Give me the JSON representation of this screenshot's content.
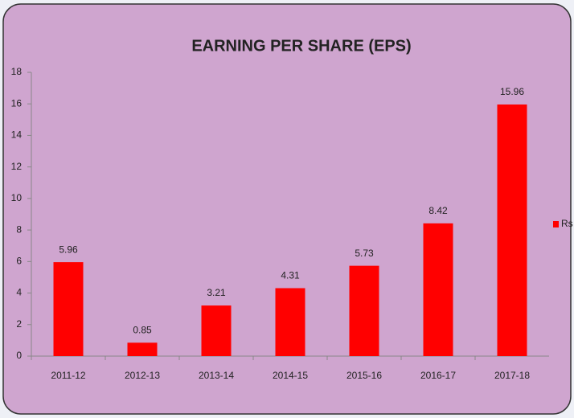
{
  "chart_data": {
    "type": "bar",
    "title": "EARNING PER SHARE (EPS)",
    "categories": [
      "2011-12",
      "2012-13",
      "2013-14",
      "2014-15",
      "2015-16",
      "2016-17",
      "2017-18"
    ],
    "series": [
      {
        "name": "Rs",
        "color": "#ff0000",
        "values": [
          5.96,
          0.85,
          3.21,
          4.31,
          5.73,
          8.42,
          15.96
        ]
      }
    ],
    "ylim": [
      0,
      18
    ],
    "yticks": [
      0,
      2,
      4,
      6,
      8,
      10,
      12,
      14,
      16,
      18
    ],
    "grid": false,
    "legend": "right"
  }
}
